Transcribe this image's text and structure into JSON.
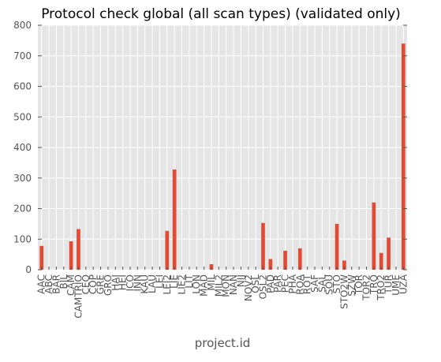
{
  "chart_data": {
    "type": "bar",
    "title": "Protocol check global (all scan types) (validated only)",
    "xlabel": "project.id",
    "ylabel": "",
    "ylim": [
      0,
      800
    ],
    "yticks": [
      0,
      100,
      200,
      300,
      400,
      500,
      600,
      700,
      800
    ],
    "grid": true,
    "legend": "none",
    "categories": [
      "AAC",
      "ABC",
      "BAR",
      "BIL",
      "CAM",
      "CAMTRIO",
      "CEO",
      "COP",
      "GRE",
      "GRO",
      "HAI",
      "HEI",
      "ICO",
      "INN",
      "KAU",
      "LAU",
      "LEI",
      "LEI2",
      "LIE",
      "LIE2",
      "LIT",
      "LON",
      "MAD",
      "MIL",
      "MIL2",
      "MON",
      "NAN",
      "NIJ",
      "NOV2",
      "OSL",
      "OSL2",
      "PAD",
      "PAR",
      "PEC",
      "PHA",
      "ROA",
      "ROT",
      "SAF",
      "SAL",
      "SOU",
      "STO",
      "STO2W",
      "SZW",
      "TOR",
      "TOR2",
      "TRO",
      "TRO2",
      "TUR",
      "UME",
      "UZA"
    ],
    "values": [
      78,
      0,
      0,
      0,
      93,
      133,
      0,
      0,
      0,
      0,
      0,
      0,
      0,
      0,
      0,
      0,
      0,
      127,
      328,
      0,
      0,
      0,
      0,
      18,
      0,
      0,
      0,
      0,
      0,
      0,
      153,
      35,
      0,
      62,
      0,
      70,
      0,
      0,
      0,
      0,
      150,
      30,
      0,
      0,
      0,
      220,
      55,
      105,
      0,
      740
    ],
    "colors": {
      "bar": "#e24a33",
      "plot_bg": "#e5e5e5",
      "grid": "#ffffff",
      "text": "#555555"
    }
  }
}
